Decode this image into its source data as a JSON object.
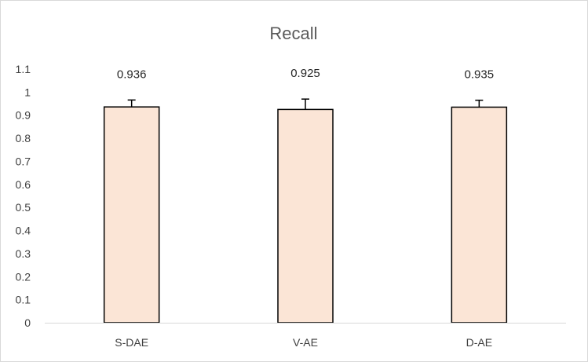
{
  "chart_data": {
    "type": "bar",
    "title": "Recall",
    "xlabel": "",
    "ylabel": "",
    "categories": [
      "S-DAE",
      "V-AE",
      "D-AE"
    ],
    "series": [
      {
        "values": [
          0.936,
          0.925,
          0.935
        ],
        "error": [
          0.03,
          0.045,
          0.03
        ],
        "data_labels": [
          "0.936",
          "0.925",
          "0.935"
        ]
      }
    ],
    "ylim": [
      0,
      1.1
    ],
    "yticks": [
      0,
      0.1,
      0.2,
      0.3,
      0.4,
      0.5,
      0.6,
      0.7,
      0.8,
      0.9,
      1,
      1.1
    ],
    "ytick_labels": [
      "0",
      "0.1",
      "0.2",
      "0.3",
      "0.4",
      "0.5",
      "0.6",
      "0.7",
      "0.8",
      "0.9",
      "1",
      "1.1"
    ],
    "grid": false,
    "legend": "none",
    "colors": {
      "bar_fill": "#fbe5d6",
      "bar_stroke": "#000000",
      "axis_line": "#d9d9d9",
      "error_bar": "#000000"
    }
  }
}
